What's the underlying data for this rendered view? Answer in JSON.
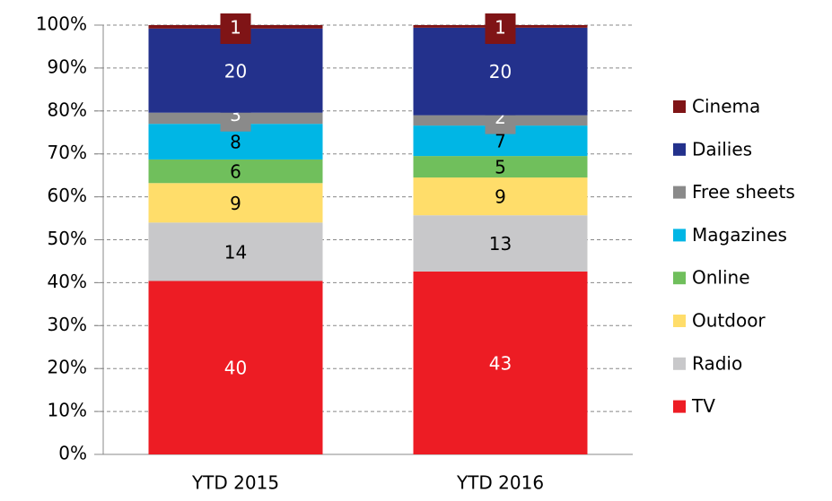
{
  "chart_data": {
    "type": "stacked_bar",
    "categories": [
      "YTD 2015",
      "YTD 2016"
    ],
    "series": [
      {
        "name": "TV",
        "color": "#ed1c24",
        "label_color": "#ffffff",
        "values": [
          40.4,
          42.6
        ],
        "value_labels": [
          "40",
          "43"
        ]
      },
      {
        "name": "Radio",
        "color": "#c8c8ca",
        "label_color": "#000000",
        "values": [
          13.6,
          13.1
        ],
        "value_labels": [
          "14",
          "13"
        ]
      },
      {
        "name": "Outdoor",
        "color": "#ffdd6a",
        "label_color": "#000000",
        "values": [
          9.2,
          8.8
        ],
        "value_labels": [
          "9",
          "9"
        ]
      },
      {
        "name": "Online",
        "color": "#70bf5c",
        "label_color": "#000000",
        "values": [
          5.5,
          5.0
        ],
        "value_labels": [
          "6",
          "5"
        ]
      },
      {
        "name": "Magazines",
        "color": "#00b6e5",
        "label_color": "#000000",
        "values": [
          8.3,
          7.1
        ],
        "value_labels": [
          "8",
          "7"
        ]
      },
      {
        "name": "Free sheets",
        "color": "#8a8a8a",
        "label_color": "#ffffff",
        "values": [
          2.6,
          2.4
        ],
        "value_labels": [
          "3",
          "2"
        ]
      },
      {
        "name": "Dailies",
        "color": "#23318c",
        "label_color": "#ffffff",
        "values": [
          19.6,
          20.4
        ],
        "value_labels": [
          "20",
          "20"
        ]
      },
      {
        "name": "Cinema",
        "color": "#7f1416",
        "label_color": "#ffffff",
        "values": [
          0.8,
          0.6
        ],
        "value_labels": [
          "1",
          "1"
        ]
      }
    ],
    "ylim": [
      0,
      100
    ],
    "yticks": [
      {
        "value": 0,
        "label": "0%"
      },
      {
        "value": 10,
        "label": "10%"
      },
      {
        "value": 20,
        "label": "20%"
      },
      {
        "value": 30,
        "label": "30%"
      },
      {
        "value": 40,
        "label": "40%"
      },
      {
        "value": 50,
        "label": "50%"
      },
      {
        "value": 60,
        "label": "60%"
      },
      {
        "value": 70,
        "label": "70%"
      },
      {
        "value": 80,
        "label": "80%"
      },
      {
        "value": 90,
        "label": "90%"
      },
      {
        "value": 100,
        "label": "100%"
      }
    ],
    "grid": true,
    "legend": "right"
  }
}
